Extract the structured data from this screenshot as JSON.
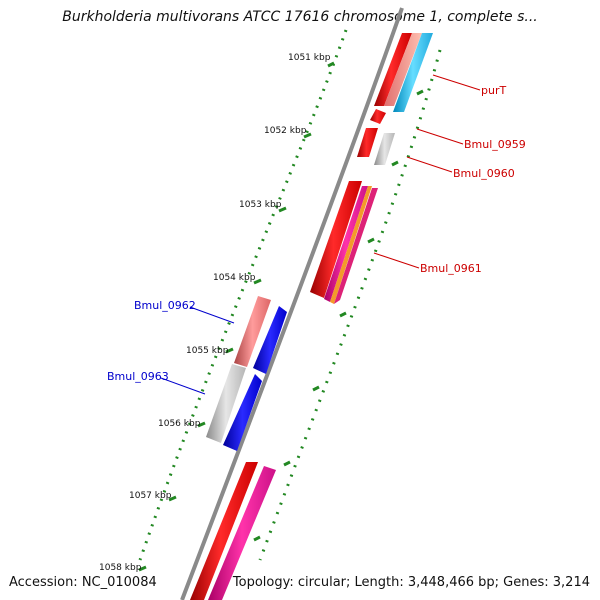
{
  "header": {
    "title": "Burkholderia multivorans ATCC 17616 chromosome 1, complete s..."
  },
  "footer": {
    "accession": "Accession: NC_010084",
    "topology": "Topology: circular; Length: 3,448,466 bp; Genes: 3,214"
  },
  "scale_ticks": [
    "1051 kbp",
    "1052 kbp",
    "1053 kbp",
    "1054 kbp",
    "1055 kbp",
    "1056 kbp",
    "1057 kbp",
    "1058 kbp"
  ],
  "genes": [
    {
      "label": "purT",
      "strand": "forward",
      "color": "#cc0000"
    },
    {
      "label": "Bmul_0959",
      "strand": "forward",
      "color": "#cc0000"
    },
    {
      "label": "Bmul_0960",
      "strand": "forward",
      "color": "#cc0000"
    },
    {
      "label": "Bmul_0961",
      "strand": "forward",
      "color": "#cc0000"
    },
    {
      "label": "Bmul_0962",
      "strand": "reverse",
      "color": "#0000cc"
    },
    {
      "label": "Bmul_0963",
      "strand": "reverse",
      "color": "#0000cc"
    }
  ],
  "colors": {
    "backbone": "#8a8a8a",
    "cds_red": "#ee0000",
    "cds_pink": "#ee1199",
    "cds_gray": "#b0b0b0",
    "cds_blue": "#0000ee",
    "cds_cyan": "#22bbee",
    "cds_salmon": "#e06a6a",
    "gc_skew_dots": "#228822",
    "tick_green": "#228822"
  }
}
